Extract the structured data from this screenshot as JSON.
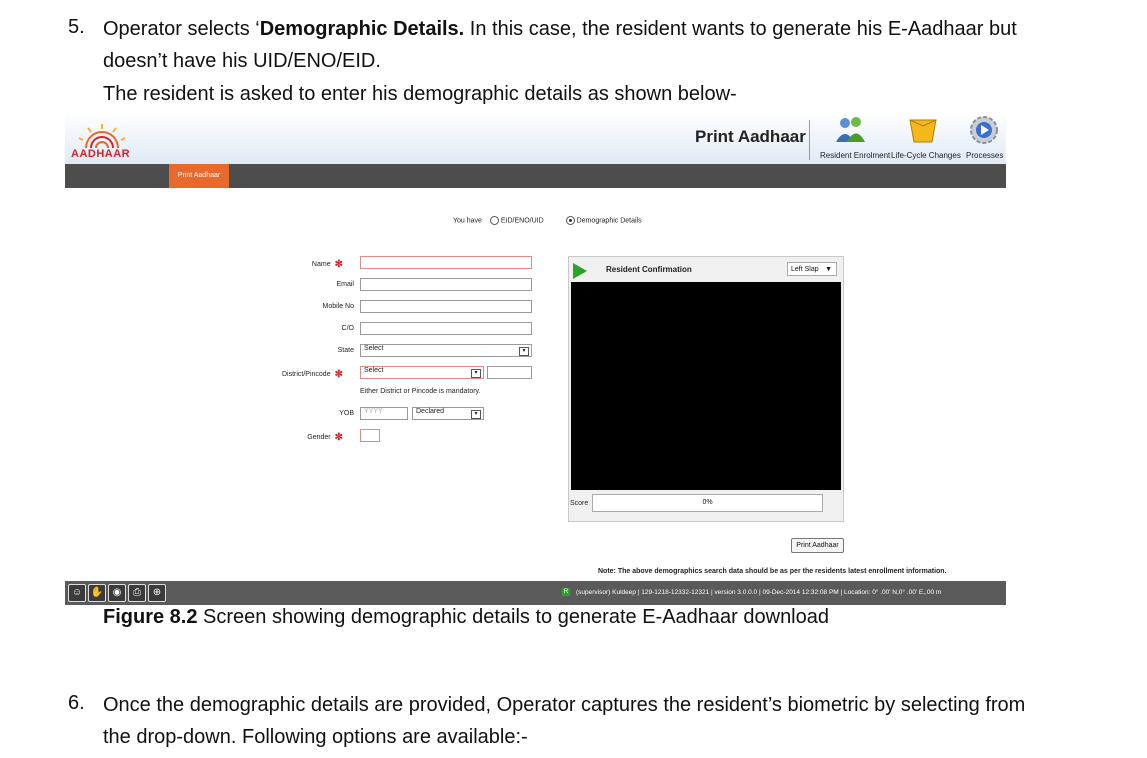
{
  "step5": {
    "number": "5.",
    "line1_pre": "Operator selects ‘",
    "line1_bold": "Demographic Details.",
    "line1_post": " In this case, the resident wants to generate his E-Aadhaar but",
    "line2": "doesn’t have his UID/ENO/EID.",
    "line3": "The resident is asked to enter his demographic details as shown below-"
  },
  "app": {
    "logo_text": "AADHAAR",
    "title": "Print Aadhaar",
    "header_items": [
      {
        "label": "Resident Enrolment",
        "icon": "people-icon"
      },
      {
        "label": "Life-Cycle Changes",
        "icon": "box-icon"
      },
      {
        "label": "Processes",
        "icon": "gear-play-icon"
      }
    ],
    "nav_tab": "Print Aadhaar",
    "you_have": "You have",
    "options": [
      "EID/ENO/UID",
      "Demographic Details"
    ],
    "selected_option": "Demographic Details",
    "fields": {
      "name": "Name",
      "email": "Email",
      "mobile": "Mobile No",
      "co": "C/O",
      "state": "State",
      "state_value": "Select",
      "district": "District/Pincode",
      "district_value": "Select",
      "district_note": "Either District or Pincode is mandatory.",
      "yob": "YOB",
      "yob_placeholder": "YYYY",
      "yob_type": "Declared",
      "gender": "Gender"
    },
    "confirmation": {
      "title": "Resident Confirmation",
      "slap": "Left Slap",
      "score_label": "Score",
      "score_value": "0%"
    },
    "print_button": "Print Aadhaar",
    "note": "Note: The above demographics search data should be as per the residents latest enrollment information.",
    "status": {
      "r": "R",
      "text": "(supervisor) Kuldeep  |  129-1218-12332-12321  |  version 3.0.0.0  |  09-Dec-2014 12:32:08 PM  |  Location: 0° .00' N,0° .00' E,.00 m"
    }
  },
  "figure": {
    "label": "Figure 8.2",
    "caption": " Screen showing demographic details to generate E-Aadhaar download"
  },
  "step6": {
    "number": "6.",
    "line1": "Once the demographic details are provided, Operator captures the resident’s biometric by selecting from",
    "line2": "the drop-down. Following options are available:-"
  }
}
